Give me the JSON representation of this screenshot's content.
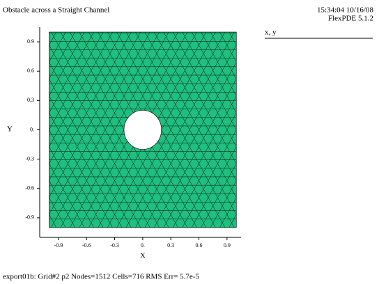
{
  "chart_data": {
    "type": "mesh",
    "title": "Obstacle across a Straight Channel",
    "timestamp": "15:34:04 10/16/08",
    "version": "FlexPDE 5.1.2",
    "legend": "x, y",
    "xlabel": "X",
    "ylabel": "Y",
    "xlim": [
      -1.1,
      1.05
    ],
    "ylim": [
      -1.1,
      1.05
    ],
    "xticks": [
      -0.9,
      -0.6,
      -0.3,
      {
        "value": 0,
        "label": "0."
      },
      0.3,
      0.6,
      0.9
    ],
    "yticks": [
      0.9,
      0.6,
      0.3,
      {
        "value": 0,
        "label": "0."
      },
      -0.3,
      -0.6,
      -0.9
    ],
    "region": {
      "x": [
        -1,
        1
      ],
      "y": [
        -1,
        1
      ],
      "color": "#1fbf80"
    },
    "obstacle": {
      "cx": 0,
      "cy": 0,
      "r": 0.2
    },
    "footer": "export01b:  Grid#2  p2  Nodes=1512 Cells=716 RMS Err= 5.7e-5"
  }
}
